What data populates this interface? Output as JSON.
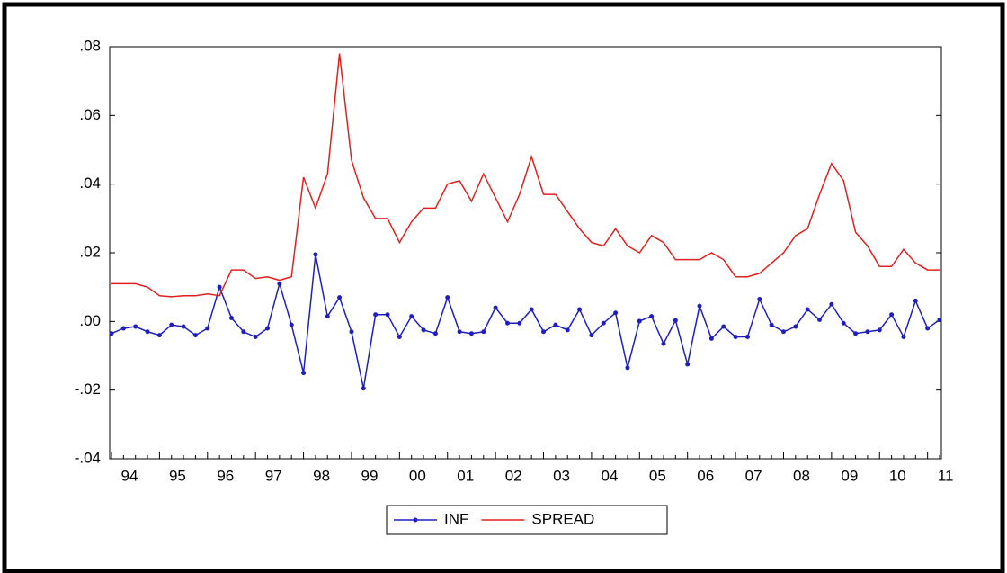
{
  "chart_data": {
    "type": "line",
    "categories": [
      "94",
      null,
      null,
      null,
      "95",
      null,
      null,
      null,
      "96",
      null,
      null,
      null,
      "97",
      null,
      null,
      null,
      "98",
      null,
      null,
      null,
      "99",
      null,
      null,
      null,
      "00",
      null,
      null,
      null,
      "01",
      null,
      null,
      null,
      "02",
      null,
      null,
      null,
      "03",
      null,
      null,
      null,
      "04",
      null,
      null,
      null,
      "05",
      null,
      null,
      null,
      "06",
      null,
      null,
      null,
      "07",
      null,
      null,
      null,
      "08",
      null,
      null,
      null,
      "09",
      null,
      null,
      null,
      "10",
      null,
      null,
      null,
      "11",
      null
    ],
    "series": [
      {
        "name": "INF",
        "color": "#1f1fbf",
        "markers": true,
        "values": [
          -0.0035,
          -0.002,
          -0.0015,
          -0.003,
          -0.004,
          -0.001,
          -0.0015,
          -0.004,
          -0.002,
          0.01,
          0.001,
          -0.003,
          -0.0045,
          -0.002,
          0.011,
          -0.001,
          -0.015,
          0.0195,
          0.0015,
          0.007,
          -0.003,
          -0.0195,
          0.002,
          0.002,
          -0.0045,
          0.0015,
          -0.0025,
          -0.0035,
          0.007,
          -0.003,
          -0.0035,
          -0.003,
          0.004,
          -0.0005,
          -0.0005,
          0.0035,
          -0.003,
          -0.001,
          -0.0025,
          0.0035,
          -0.004,
          -0.0005,
          0.0025,
          -0.0135,
          0.0001,
          0.0015,
          -0.0065,
          0.0003,
          -0.0125,
          0.0045,
          -0.005,
          -0.0015,
          -0.0045,
          -0.0045,
          0.0065,
          -0.001,
          -0.003,
          -0.0015,
          0.0035,
          0.0005,
          0.005,
          -0.0005,
          -0.0035,
          -0.003,
          -0.0025,
          0.002,
          -0.0045,
          0.006,
          -0.002,
          0.0005
        ]
      },
      {
        "name": "SPREAD",
        "color": "#e02020",
        "markers": false,
        "values": [
          0.011,
          0.011,
          0.011,
          0.01,
          0.0075,
          0.0072,
          0.0075,
          0.0075,
          0.008,
          0.0075,
          0.015,
          0.015,
          0.0125,
          0.013,
          0.012,
          0.013,
          0.042,
          0.033,
          0.043,
          0.078,
          0.047,
          0.036,
          0.03,
          0.03,
          0.023,
          0.029,
          0.033,
          0.033,
          0.04,
          0.041,
          0.035,
          0.043,
          0.036,
          0.029,
          0.037,
          0.048,
          0.037,
          0.037,
          0.032,
          0.027,
          0.023,
          0.022,
          0.027,
          0.022,
          0.02,
          0.025,
          0.023,
          0.018,
          0.018,
          0.018,
          0.02,
          0.018,
          0.013,
          0.013,
          0.014,
          0.017,
          0.02,
          0.025,
          0.027,
          0.037,
          0.046,
          0.041,
          0.026,
          0.022,
          0.016,
          0.016,
          0.021,
          0.017,
          0.015,
          0.015
        ]
      }
    ],
    "ylim": [
      -0.04,
      0.08
    ],
    "yticks": [
      {
        "value": -0.04,
        "label": "-.04"
      },
      {
        "value": -0.02,
        "label": "-.02"
      },
      {
        "value": 0,
        "label": ".00"
      },
      {
        "value": 0.02,
        "label": ".02"
      },
      {
        "value": 0.04,
        "label": ".04"
      },
      {
        "value": 0.06,
        "label": ".06"
      },
      {
        "value": 0.08,
        "label": ".08"
      }
    ],
    "legend": "bottom"
  }
}
